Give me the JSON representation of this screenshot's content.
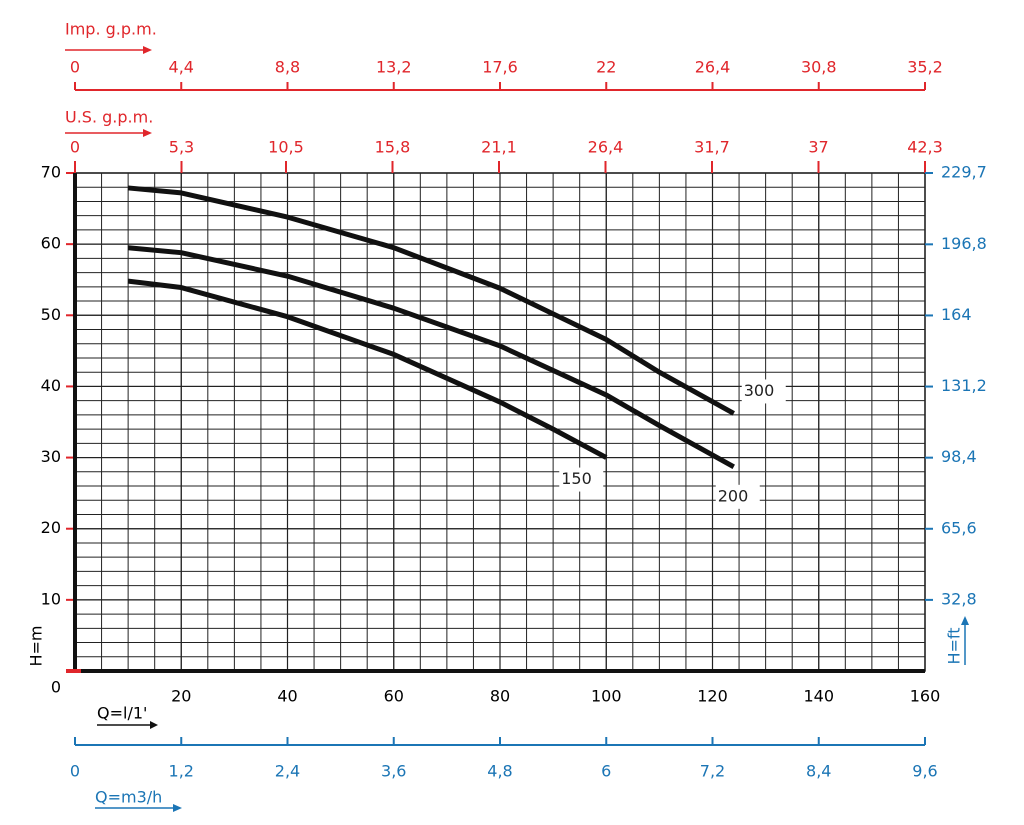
{
  "chart_data": {
    "type": "line",
    "x_label": "Q=l/1'",
    "y_label": "H=m",
    "xlim": [
      0,
      160
    ],
    "ylim": [
      0,
      70
    ],
    "xticks": [
      20,
      40,
      60,
      80,
      100,
      120,
      140,
      160
    ],
    "yticks": [
      0,
      10,
      20,
      30,
      40,
      50,
      60,
      70
    ],
    "grid": true,
    "series": [
      {
        "name": "300",
        "color": "#111111",
        "x": [
          10,
          20,
          40,
          60,
          80,
          100,
          110,
          124
        ],
        "values": [
          67.9,
          67.2,
          63.8,
          59.5,
          53.8,
          46.6,
          42,
          36.2
        ]
      },
      {
        "name": "200",
        "color": "#111111",
        "x": [
          10,
          20,
          40,
          60,
          80,
          100,
          110,
          124
        ],
        "values": [
          59.5,
          58.8,
          55.5,
          51,
          45.7,
          38.8,
          34.5,
          28.7
        ]
      },
      {
        "name": "150",
        "color": "#111111",
        "x": [
          10,
          20,
          40,
          60,
          80,
          90,
          100
        ],
        "values": [
          54.8,
          53.9,
          49.8,
          44.5,
          37.8,
          34,
          30
        ]
      }
    ],
    "secondary_axes": [
      {
        "label": "Imp. g.p.m.",
        "position": "top",
        "color": "#e0262b",
        "lim": [
          0,
          35.2
        ],
        "ticks": [
          0,
          {
            "value": 4.4,
            "label": "4,4"
          },
          {
            "value": 8.8,
            "label": "8,8"
          },
          {
            "value": 13.2,
            "label": "13,2"
          },
          {
            "value": 17.6,
            "label": "17,6"
          },
          22,
          {
            "value": 26.4,
            "label": "26,4"
          },
          {
            "value": 30.8,
            "label": "30,8"
          },
          {
            "value": 35.2,
            "label": "35,2"
          }
        ]
      },
      {
        "label": "U.S.  g.p.m.",
        "position": "top2",
        "color": "#e0262b",
        "lim": [
          0,
          42.3
        ],
        "ticks": [
          0,
          {
            "value": 5.3,
            "label": "5,3"
          },
          {
            "value": 10.5,
            "label": "10,5"
          },
          {
            "value": 15.8,
            "label": "15,8"
          },
          {
            "value": 21.1,
            "label": "21,1"
          },
          {
            "value": 26.4,
            "label": "26,4"
          },
          {
            "value": 31.7,
            "label": "31,7"
          },
          37,
          {
            "value": 42.3,
            "label": "42,3"
          }
        ]
      },
      {
        "label": "Q=m3/h",
        "position": "bottom",
        "color": "#1b75b5",
        "lim": [
          0,
          9.6
        ],
        "ticks": [
          0,
          {
            "value": 1.2,
            "label": "1,2"
          },
          {
            "value": 2.4,
            "label": "2,4"
          },
          {
            "value": 3.6,
            "label": "3,6"
          },
          {
            "value": 4.8,
            "label": "4,8"
          },
          6,
          {
            "value": 7.2,
            "label": "7,2"
          },
          {
            "value": 8.4,
            "label": "8,4"
          },
          {
            "value": 9.6,
            "label": "9,6"
          }
        ]
      },
      {
        "label": "H=ft",
        "position": "right",
        "color": "#1b75b5",
        "lim": [
          0,
          229.7
        ],
        "ticks": [
          {
            "value": 32.8,
            "label": "32,8"
          },
          {
            "value": 65.6,
            "label": "65,6"
          },
          {
            "value": 98.4,
            "label": "98,4"
          },
          {
            "value": 131.2,
            "label": "131,2"
          },
          164,
          {
            "value": 196.8,
            "label": "196,8"
          },
          {
            "value": 229.7,
            "label": "229,7"
          }
        ]
      }
    ]
  }
}
